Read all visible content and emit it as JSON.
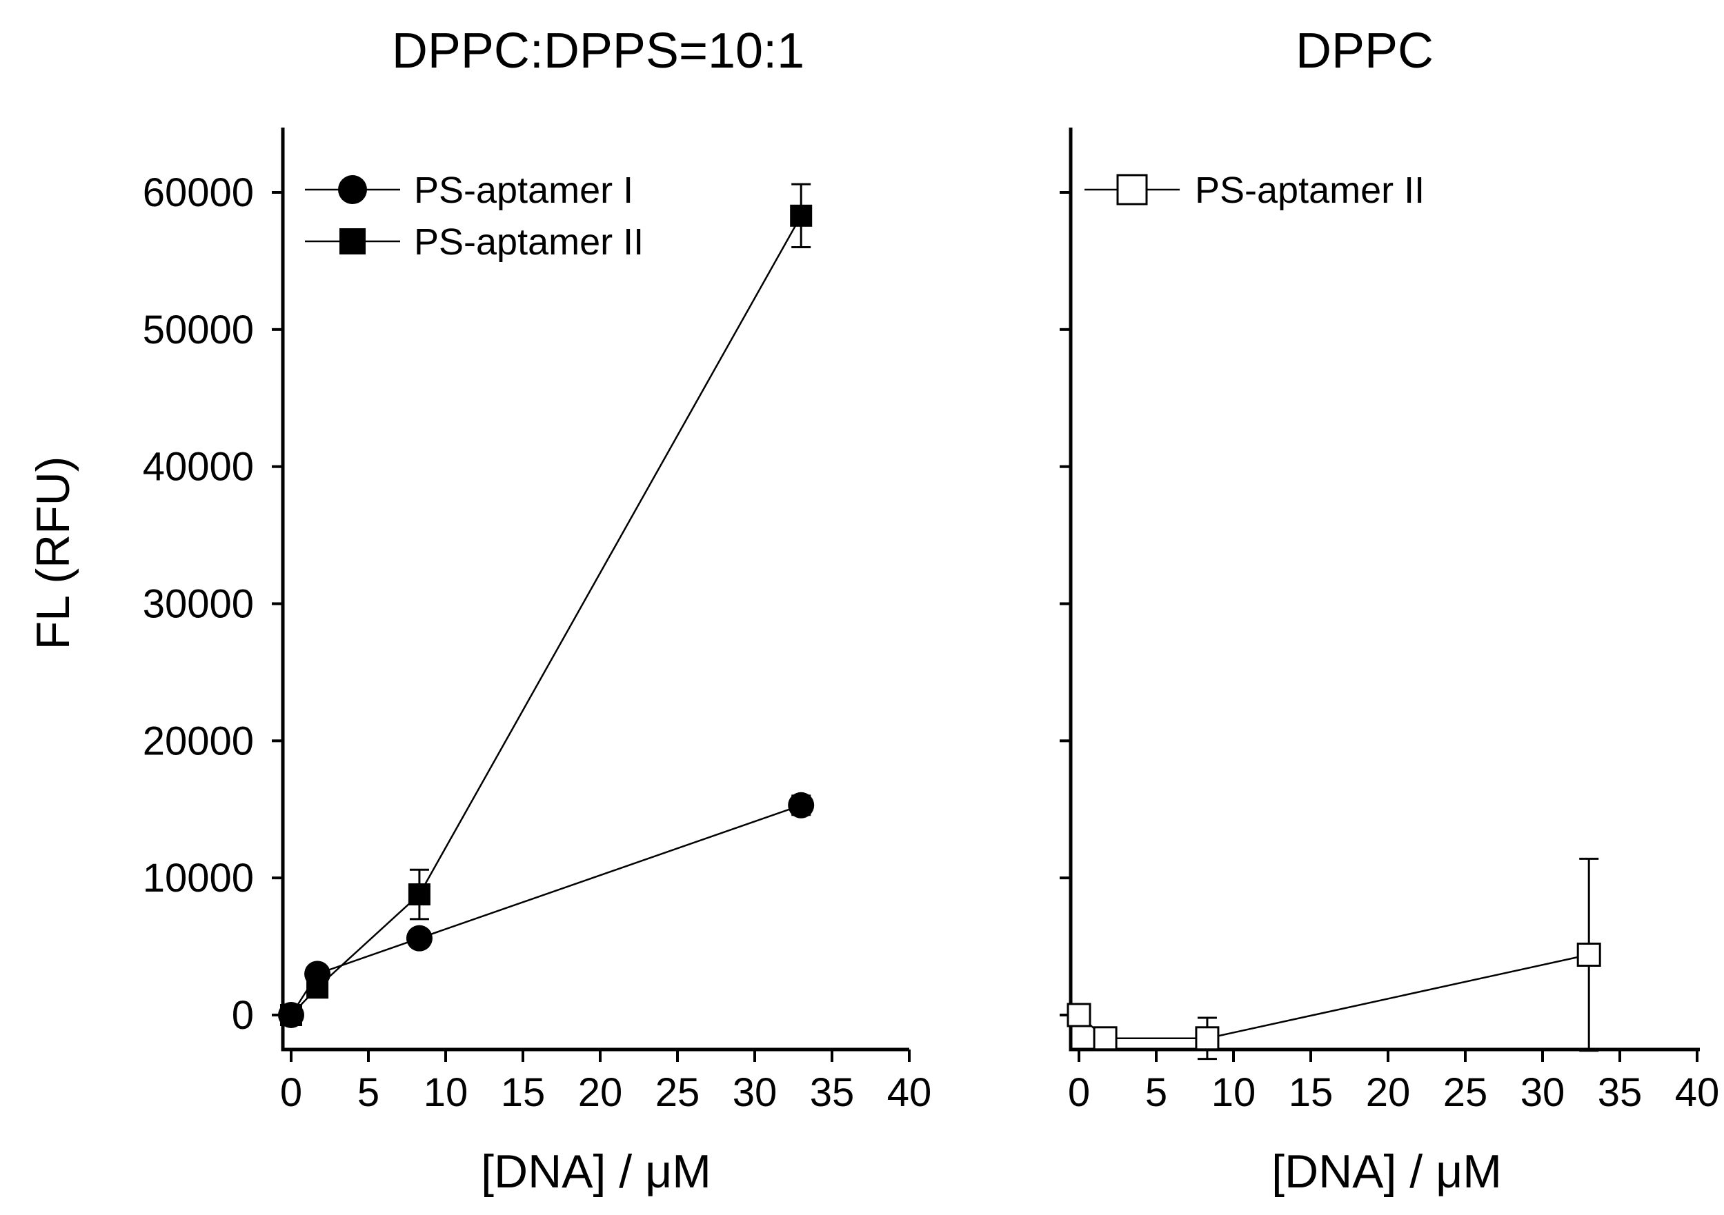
{
  "chart_data": [
    {
      "type": "line",
      "title": "DPPC:DPPS=10:1",
      "xlabel": "[DNA] / μM",
      "ylabel": "FL (RFU)",
      "xlim": [
        -0.5,
        40
      ],
      "ylim": [
        -2500,
        65000
      ],
      "xticks": [
        0,
        5,
        10,
        15,
        20,
        25,
        30,
        35,
        40
      ],
      "xtick_labels": [
        "0",
        "5",
        "10",
        "15",
        "20",
        "25",
        "30",
        "35",
        "40"
      ],
      "yticks": [
        0,
        10000,
        20000,
        30000,
        40000,
        50000,
        60000
      ],
      "ytick_labels": [
        "0",
        "10000",
        "20000",
        "30000",
        "40000",
        "50000",
        "60000"
      ],
      "legend_position": "top-left",
      "series": [
        {
          "name": "PS-aptamer I",
          "marker": "filled-circle",
          "x": [
            0,
            1.7,
            8.3,
            33
          ],
          "y": [
            0,
            3000,
            5600,
            15300
          ],
          "yerr": [
            300,
            500,
            600,
            700
          ]
        },
        {
          "name": "PS-aptamer II",
          "marker": "filled-square",
          "x": [
            0,
            1.7,
            8.3,
            33
          ],
          "y": [
            0,
            2000,
            8800,
            58300
          ],
          "yerr": [
            300,
            500,
            1800,
            2300
          ]
        }
      ]
    },
    {
      "type": "line",
      "title": "DPPC",
      "xlabel": "[DNA] / μM",
      "ylabel": "",
      "xlim": [
        -0.5,
        40
      ],
      "ylim": [
        -2500,
        65000
      ],
      "xticks": [
        0,
        5,
        10,
        15,
        20,
        25,
        30,
        35,
        40
      ],
      "xtick_labels": [
        "0",
        "5",
        "10",
        "15",
        "20",
        "25",
        "30",
        "35",
        "40"
      ],
      "yticks": [
        0,
        10000,
        20000,
        30000,
        40000,
        50000,
        60000
      ],
      "ytick_labels": [],
      "legend_position": "top-left",
      "series": [
        {
          "name": "PS-aptamer II",
          "marker": "open-square",
          "x": [
            0,
            1.7,
            8.3,
            33
          ],
          "y": [
            0,
            -1700,
            -1700,
            4400
          ],
          "yerr": [
            300,
            300,
            1500,
            7000
          ]
        }
      ]
    }
  ]
}
